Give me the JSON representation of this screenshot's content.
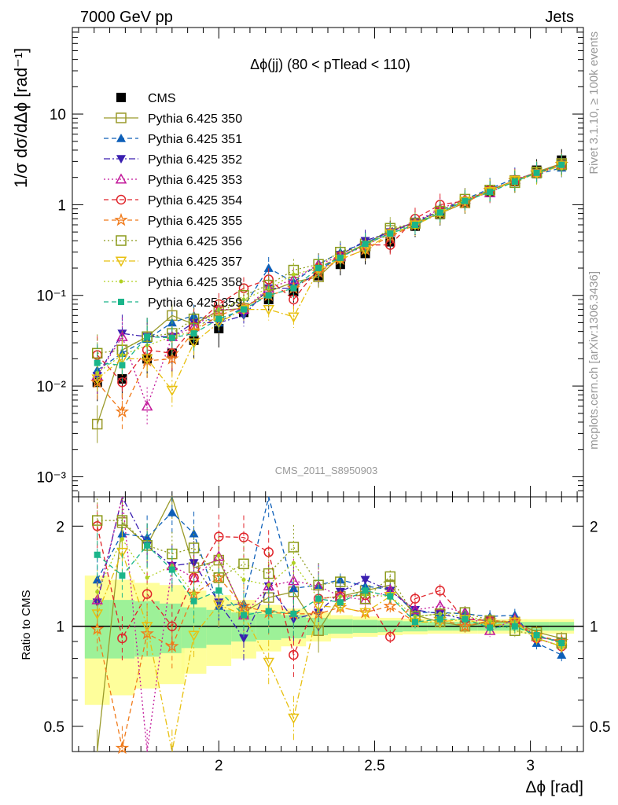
{
  "header": {
    "left": "7000 GeV pp",
    "right": "Jets"
  },
  "side_text": {
    "top": "Rivet 3.1.10, ≥ 100k events",
    "bottom": "mcplots.cern.ch [arXiv:1306.3436]"
  },
  "watermark": "CMS_2011_S8950903",
  "chart_data": [
    {
      "type": "line",
      "panel": "main",
      "title": "Δϕ(jj) (80 < pTlead <  110)",
      "ylabel": "1/σ dσ/dΔϕ [rad⁻¹]",
      "xlabel": "",
      "yscale": "log",
      "xlim": [
        1.53,
        3.17
      ],
      "ylim": [
        0.0006,
        90
      ],
      "x_ticks": [
        2,
        2.5,
        3
      ],
      "y_ticks": [
        {
          "v": 0.001,
          "label": "10⁻³"
        },
        {
          "v": 0.01,
          "label": "10⁻²"
        },
        {
          "v": 0.1,
          "label": "10⁻¹"
        },
        {
          "v": 1,
          "label": "1"
        },
        {
          "v": 10,
          "label": "10"
        }
      ],
      "x": [
        1.61,
        1.69,
        1.77,
        1.85,
        1.92,
        2.0,
        2.08,
        2.16,
        2.24,
        2.32,
        2.39,
        2.47,
        2.55,
        2.63,
        2.71,
        2.79,
        2.87,
        2.95,
        3.02,
        3.1
      ],
      "series": [
        {
          "name": "CMS",
          "color": "#000000",
          "marker": "square-filled",
          "dash": "none",
          "values": [
            0.011,
            0.012,
            0.02,
            0.023,
            0.032,
            0.043,
            0.065,
            0.09,
            0.11,
            0.165,
            0.22,
            0.29,
            0.39,
            0.58,
            0.78,
            1.05,
            1.4,
            1.8,
            2.4,
            3.1
          ]
        },
        {
          "name": "Pythia 6.425 350",
          "color": "#9a9a2a",
          "marker": "square-open",
          "dash": "solid",
          "values": [
            0.0038,
            0.025,
            0.035,
            0.06,
            0.048,
            0.068,
            0.072,
            0.11,
            0.14,
            0.16,
            0.27,
            0.37,
            0.52,
            0.63,
            0.8,
            1.05,
            1.45,
            1.85,
            2.3,
            2.85
          ]
        },
        {
          "name": "Pythia 6.425 351",
          "color": "#0d5fb8",
          "marker": "triangle-up-filled",
          "dash": "dashed",
          "values": [
            0.015,
            0.023,
            0.033,
            0.05,
            0.06,
            0.05,
            0.075,
            0.2,
            0.14,
            0.22,
            0.3,
            0.38,
            0.5,
            0.63,
            0.86,
            1.15,
            1.5,
            1.95,
            2.15,
            2.55
          ]
        },
        {
          "name": "Pythia 6.425 352",
          "color": "#3a1fb0",
          "marker": "triangle-down-filled",
          "dash": "dashdot",
          "values": [
            0.013,
            0.038,
            0.035,
            0.035,
            0.05,
            0.05,
            0.06,
            0.12,
            0.12,
            0.18,
            0.28,
            0.4,
            0.5,
            0.65,
            0.85,
            1.1,
            1.45,
            1.85,
            2.25,
            2.8
          ]
        },
        {
          "name": "Pythia 6.425 353",
          "color": "#c2189a",
          "marker": "triangle-up-open",
          "dash": "dotted",
          "values": [
            0.013,
            0.035,
            0.006,
            0.035,
            0.045,
            0.07,
            0.07,
            0.12,
            0.15,
            0.22,
            0.27,
            0.35,
            0.5,
            0.65,
            0.9,
            1.15,
            1.35,
            1.9,
            2.25,
            2.8
          ]
        },
        {
          "name": "Pythia 6.425 354",
          "color": "#e0242a",
          "marker": "circle-open",
          "dash": "dashed",
          "values": [
            0.022,
            0.011,
            0.025,
            0.023,
            0.045,
            0.08,
            0.12,
            0.15,
            0.09,
            0.2,
            0.27,
            0.36,
            0.36,
            0.7,
            1.0,
            1.1,
            1.45,
            1.85,
            2.2,
            2.7
          ]
        },
        {
          "name": "Pythia 6.425 355",
          "color": "#f07a1a",
          "marker": "star",
          "dash": "dashed",
          "values": [
            0.011,
            0.0052,
            0.019,
            0.02,
            0.04,
            0.06,
            0.075,
            0.1,
            0.12,
            0.18,
            0.25,
            0.32,
            0.45,
            0.6,
            0.82,
            1.05,
            1.45,
            1.85,
            2.25,
            2.8
          ]
        },
        {
          "name": "Pythia 6.425 356",
          "color": "#8c9a1a",
          "marker": "square-open",
          "dash": "dotted",
          "values": [
            0.023,
            0.025,
            0.035,
            0.038,
            0.055,
            0.06,
            0.1,
            0.13,
            0.19,
            0.22,
            0.3,
            0.35,
            0.55,
            0.62,
            0.85,
            1.15,
            1.45,
            1.75,
            2.25,
            2.75
          ]
        },
        {
          "name": "Pythia 6.425 357",
          "color": "#e8c010",
          "marker": "triangle-down-open",
          "dash": "dashdot",
          "values": [
            0.012,
            0.02,
            0.02,
            0.009,
            0.03,
            0.05,
            0.07,
            0.07,
            0.058,
            0.19,
            0.25,
            0.32,
            0.48,
            0.6,
            0.8,
            1.1,
            1.4,
            1.85,
            2.2,
            2.7
          ]
        },
        {
          "name": "Pythia 6.425 358",
          "color": "#b0d020",
          "marker": "dot",
          "dash": "dotted",
          "values": [
            0.014,
            0.022,
            0.028,
            0.035,
            0.04,
            0.07,
            0.09,
            0.12,
            0.17,
            0.2,
            0.27,
            0.36,
            0.48,
            0.62,
            0.85,
            1.12,
            1.45,
            1.85,
            2.2,
            2.7
          ]
        },
        {
          "name": "Pythia 6.425 359",
          "color": "#1ab58a",
          "marker": "square-filled-small",
          "dash": "dashed",
          "values": [
            0.018,
            0.017,
            0.035,
            0.034,
            0.038,
            0.055,
            0.07,
            0.1,
            0.12,
            0.2,
            0.26,
            0.37,
            0.48,
            0.6,
            0.82,
            1.1,
            1.38,
            1.8,
            2.25,
            2.75
          ]
        }
      ]
    },
    {
      "type": "line",
      "panel": "ratio",
      "ylabel": "Ratio to CMS",
      "xlabel": "Δϕ [rad]",
      "yscale": "log",
      "xlim": [
        1.53,
        3.17
      ],
      "ylim": [
        0.42,
        2.45
      ],
      "y_ticks": [
        {
          "v": 0.5,
          "label": "0.5"
        },
        {
          "v": 1,
          "label": "1"
        },
        {
          "v": 2,
          "label": "2"
        }
      ],
      "x_ticks": [
        {
          "v": 2,
          "label": "2"
        },
        {
          "v": 2.5,
          "label": "2.5"
        },
        {
          "v": 3,
          "label": "3"
        }
      ],
      "band_inner": [
        0.2,
        0.2,
        0.19,
        0.17,
        0.14,
        0.12,
        0.1,
        0.09,
        0.08,
        0.06,
        0.05,
        0.045,
        0.04,
        0.035,
        0.03,
        0.03,
        0.03,
        0.03,
        0.03,
        0.03
      ],
      "band_outer": [
        0.42,
        0.38,
        0.35,
        0.33,
        0.28,
        0.24,
        0.2,
        0.16,
        0.13,
        0.1,
        0.08,
        0.07,
        0.06,
        0.055,
        0.05,
        0.05,
        0.05,
        0.05,
        0.05,
        0.05
      ],
      "series": [
        {
          "name": "Pythia 6.425 350",
          "values": [
            0.35,
            2.05,
            1.75,
            2.6,
            1.5,
            1.58,
            1.1,
            1.22,
            1.27,
            0.97,
            1.23,
            1.28,
            1.33,
            1.08,
            1.03,
            1.0,
            1.03,
            1.03,
            0.96,
            0.92
          ]
        },
        {
          "name": "Pythia 6.425 351",
          "values": [
            1.38,
            1.9,
            1.85,
            2.2,
            1.9,
            1.15,
            1.17,
            2.5,
            1.3,
            1.33,
            1.38,
            1.32,
            1.29,
            1.1,
            1.1,
            1.09,
            1.07,
            1.08,
            0.89,
            0.82
          ]
        },
        {
          "name": "Pythia 6.425 352",
          "values": [
            1.18,
            3.1,
            1.75,
            1.52,
            1.55,
            1.18,
            0.92,
            1.32,
            1.05,
            1.1,
            1.27,
            1.38,
            1.28,
            1.12,
            1.09,
            1.05,
            1.04,
            1.03,
            0.93,
            0.9
          ]
        },
        {
          "name": "Pythia 6.425 353",
          "values": [
            1.2,
            2.9,
            0.3,
            1.52,
            1.4,
            1.62,
            1.08,
            1.32,
            1.37,
            1.32,
            1.23,
            1.2,
            1.28,
            1.12,
            1.15,
            1.1,
            0.97,
            1.05,
            0.93,
            0.9
          ]
        },
        {
          "name": "Pythia 6.425 354",
          "values": [
            2.0,
            0.92,
            1.25,
            1.0,
            1.4,
            1.86,
            1.85,
            1.67,
            0.82,
            1.21,
            1.23,
            1.24,
            0.93,
            1.21,
            1.28,
            1.05,
            1.04,
            1.03,
            0.92,
            0.87
          ]
        },
        {
          "name": "Pythia 6.425 355",
          "values": [
            0.98,
            0.43,
            0.95,
            0.87,
            1.25,
            1.4,
            1.15,
            1.1,
            1.09,
            1.09,
            1.14,
            1.1,
            1.15,
            1.03,
            1.05,
            1.0,
            1.04,
            1.03,
            0.94,
            0.9
          ]
        },
        {
          "name": "Pythia 6.425 356",
          "values": [
            2.08,
            2.08,
            1.75,
            1.65,
            1.72,
            1.4,
            1.54,
            1.44,
            1.73,
            1.33,
            1.36,
            1.21,
            1.41,
            1.07,
            1.09,
            1.1,
            1.04,
            0.97,
            0.94,
            0.89
          ]
        },
        {
          "name": "Pythia 6.425 357",
          "values": [
            1.09,
            1.67,
            1.0,
            0.39,
            0.94,
            1.16,
            1.08,
            0.78,
            0.53,
            1.15,
            1.14,
            1.1,
            1.23,
            1.03,
            1.03,
            1.05,
            1.0,
            1.03,
            0.92,
            0.87
          ]
        },
        {
          "name": "Pythia 6.425 358",
          "values": [
            1.27,
            1.83,
            1.4,
            1.52,
            1.25,
            1.63,
            1.38,
            1.33,
            1.55,
            1.21,
            1.23,
            1.24,
            1.23,
            1.07,
            1.09,
            1.07,
            1.04,
            1.03,
            0.92,
            0.87
          ]
        },
        {
          "name": "Pythia 6.425 359",
          "values": [
            1.64,
            1.42,
            1.75,
            1.48,
            1.19,
            1.28,
            1.08,
            1.11,
            1.09,
            1.21,
            1.18,
            1.28,
            1.23,
            1.03,
            1.05,
            1.05,
            0.99,
            1.0,
            0.94,
            0.89
          ]
        }
      ]
    }
  ]
}
